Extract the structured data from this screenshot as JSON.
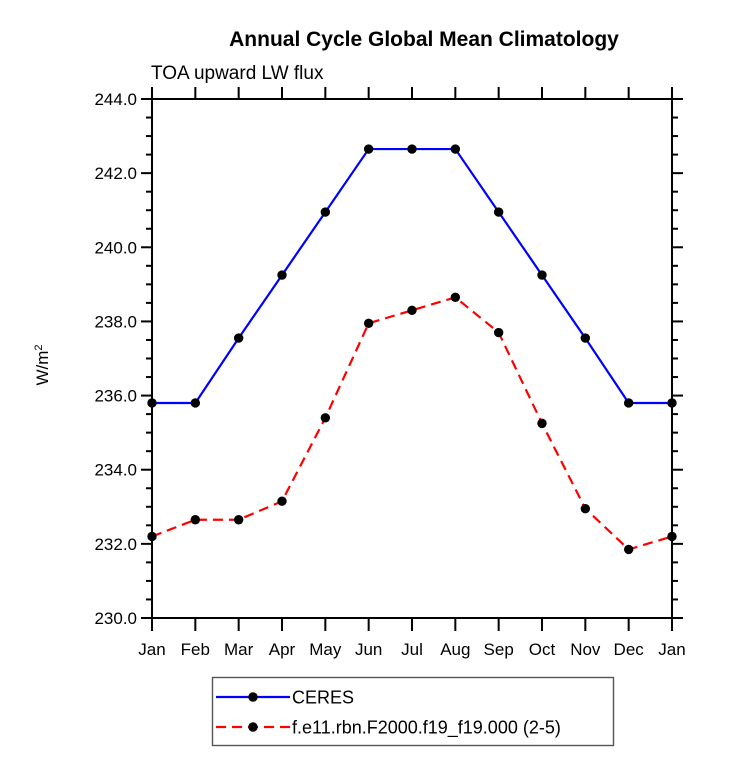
{
  "title": "Annual Cycle Global Mean Climatology",
  "subtitle": "TOA upward LW flux",
  "chart_data": {
    "type": "line",
    "categories": [
      "Jan",
      "Feb",
      "Mar",
      "Apr",
      "May",
      "Jun",
      "Jul",
      "Aug",
      "Sep",
      "Oct",
      "Nov",
      "Dec",
      "Jan"
    ],
    "ylabel_base": "W/m",
    "ylabel_sup": "2",
    "ylim": [
      230.0,
      244.0
    ],
    "ytick_interval": 2.0,
    "yminor_interval": 0.5,
    "ytick_labels": [
      "244.0",
      "242.0",
      "240.0",
      "238.0",
      "236.0",
      "234.0",
      "232.0",
      "230.0"
    ],
    "grid": false,
    "legend_position": "bottom",
    "axis_color": "#000000",
    "marker_color": "#000000",
    "series": [
      {
        "name": "CERES",
        "line_color": "#0000ff",
        "line_style": "solid",
        "marker": "filled-circle",
        "values": [
          235.8,
          235.8,
          237.55,
          239.25,
          240.95,
          242.65,
          242.65,
          242.65,
          240.95,
          239.25,
          237.55,
          235.8,
          235.8
        ]
      },
      {
        "name": "f.e11.rbn.F2000.f19_f19.000 (2-5)",
        "line_color": "#ff0000",
        "line_style": "dashed",
        "marker": "filled-circle",
        "values": [
          232.2,
          232.65,
          232.65,
          233.15,
          235.4,
          237.95,
          238.3,
          238.65,
          237.7,
          235.25,
          232.95,
          231.85,
          232.2
        ]
      }
    ]
  }
}
